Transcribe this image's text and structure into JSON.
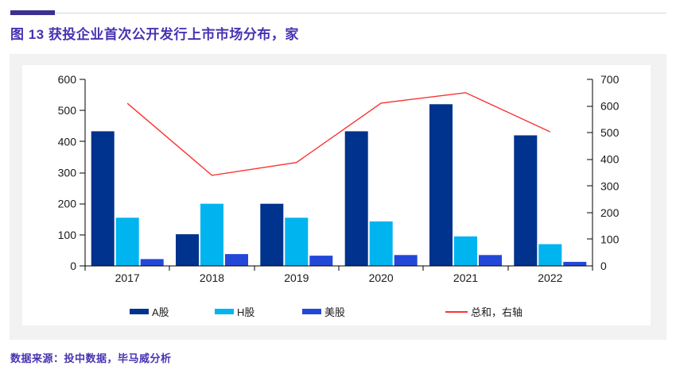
{
  "header": {
    "figure_title": "图 13  获投企业首次公开发行上市市场分布，家"
  },
  "footer": {
    "source_note": "数据来源：投中数据，毕马威分析"
  },
  "colors": {
    "title_text": "#4733b2",
    "accent_bar": "#3a3191",
    "top_divider": "#d9d9d9",
    "panel_bg": "#f2f2f2",
    "chart_bg": "#ffffff",
    "axis": "#000000",
    "tick_label": "#1a1a1a"
  },
  "chart_data": {
    "type": "bar",
    "subtype": "grouped bars with total line on secondary (right) axis",
    "title": "获投企业首次公开发行上市市场分布，家",
    "categories": [
      "2017",
      "2018",
      "2019",
      "2020",
      "2021",
      "2022"
    ],
    "series": [
      {
        "name": "A股",
        "chart_type": "bar",
        "axis": "left",
        "color": "#00338d",
        "values": [
          433,
          102,
          200,
          433,
          520,
          420
        ]
      },
      {
        "name": "H股",
        "chart_type": "bar",
        "axis": "left",
        "color": "#00b4f0",
        "values": [
          155,
          200,
          155,
          143,
          95,
          70
        ]
      },
      {
        "name": "美股",
        "chart_type": "bar",
        "axis": "left",
        "color": "#2348d8",
        "values": [
          22,
          38,
          33,
          35,
          35,
          13
        ]
      },
      {
        "name": "总和，右轴",
        "chart_type": "line",
        "axis": "right",
        "color": "#fb3232",
        "values": [
          610,
          340,
          388,
          611,
          650,
          503
        ]
      }
    ],
    "left_axis": {
      "min": 0,
      "max": 600,
      "step": 100,
      "tick_labels": [
        "0",
        "100",
        "200",
        "300",
        "400",
        "500",
        "600"
      ]
    },
    "right_axis": {
      "min": 0,
      "max": 700,
      "step": 100,
      "tick_labels": [
        "0",
        "100",
        "200",
        "300",
        "400",
        "500",
        "600",
        "700"
      ]
    },
    "legend_position": "bottom",
    "grid": false
  }
}
